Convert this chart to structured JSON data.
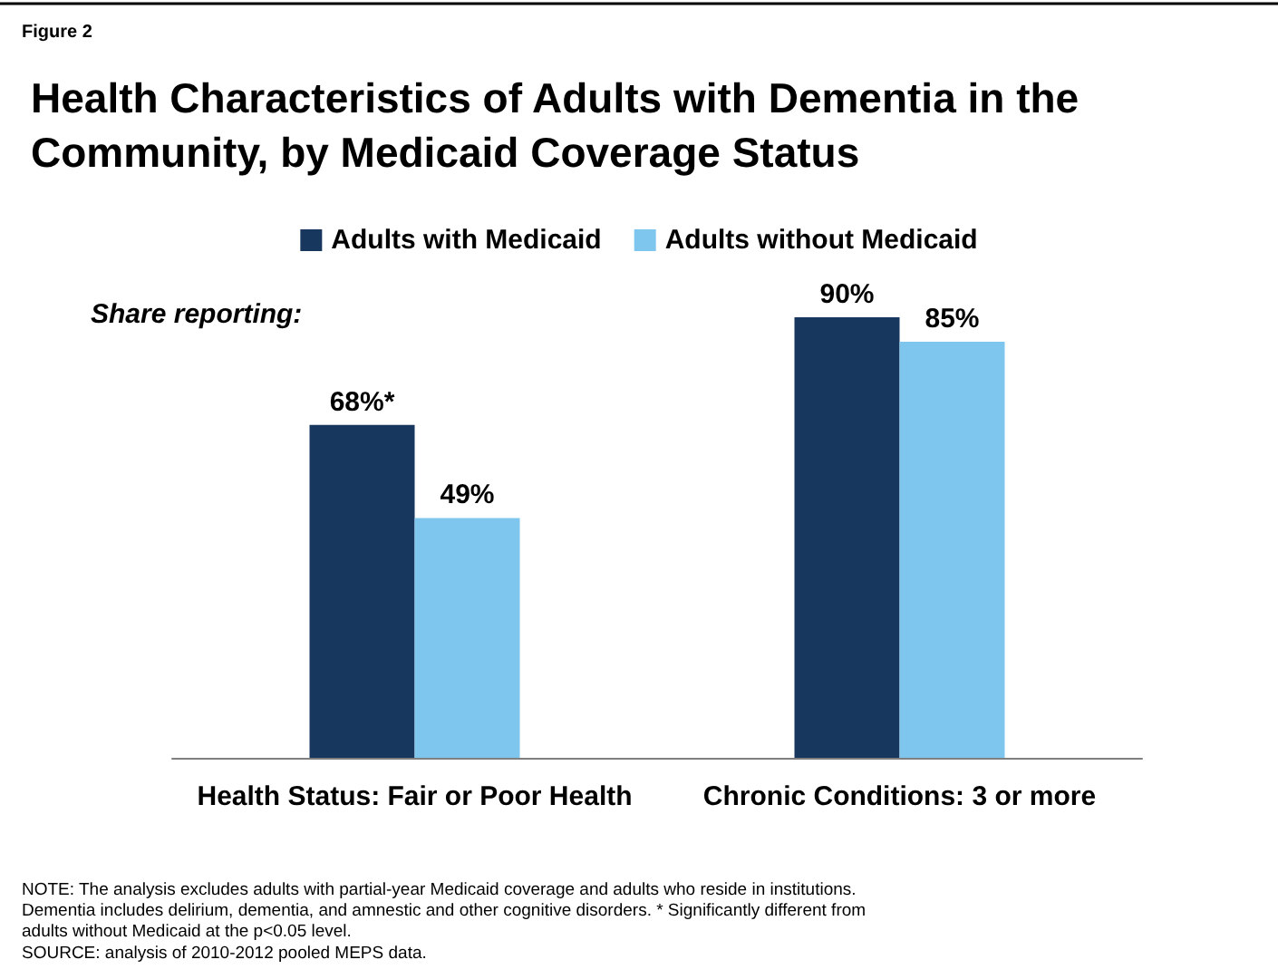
{
  "chart_data": {
    "type": "bar",
    "title": "Health Characteristics of Adults with Dementia in the Community, by Medicaid Coverage Status",
    "subtitle": "Figure 2",
    "categories": [
      "Health Status: Fair or Poor Health",
      "Chronic Conditions: 3 or more"
    ],
    "series": [
      {
        "name": "Adults with Medicaid",
        "color": "#17375e",
        "values": [
          68,
          90
        ],
        "value_labels": [
          "68%*",
          "90%"
        ]
      },
      {
        "name": "Adults without Medicaid",
        "color": "#7fc6ee",
        "values": [
          49,
          85
        ],
        "value_labels": [
          "49%",
          "85%"
        ]
      }
    ],
    "legend": "top",
    "annotations": [
      "Share reporting:",
      "NOTE: The analysis excludes adults with partial-year Medicaid coverage and adults who reside in institutions. Dementia includes delirium, dementia, and amnestic and other cognitive disorders. * Significantly different from adults without Medicaid at the p<0.05 level.",
      "SOURCE: analysis of 2010-2012 pooled MEPS data."
    ]
  }
}
